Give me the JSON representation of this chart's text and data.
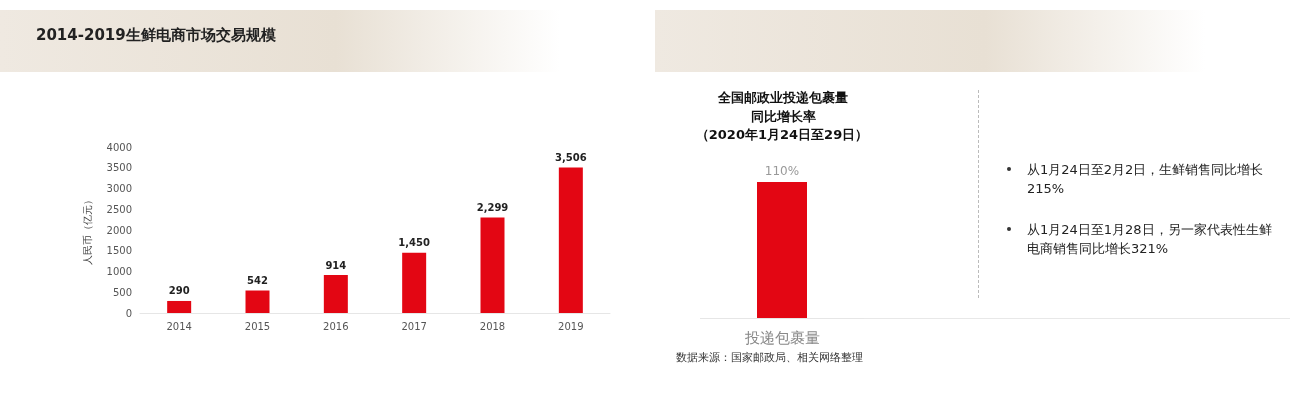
{
  "chart_data": [
    {
      "type": "bar",
      "title": "2014-2019生鲜电商市场交易规模",
      "ylabel": "人民币（亿元）",
      "categories": [
        "2014",
        "2015",
        "2016",
        "2017",
        "2018",
        "2019"
      ],
      "values": [
        290,
        542,
        914,
        1450,
        2299,
        3506
      ],
      "value_labels": [
        "290",
        "542",
        "914",
        "1,450",
        "2,299",
        "3,506"
      ],
      "color": "#e30613",
      "ylim": [
        0,
        4000
      ],
      "yticks": [
        0,
        500,
        1000,
        1500,
        2000,
        2500,
        3000,
        3500,
        4000
      ]
    },
    {
      "type": "bar",
      "title": "全国邮政业投递包裹量同比增长率",
      "subtitle": "（2020年1月24日至29日）",
      "categories": [
        "投递包裹量"
      ],
      "values": [
        110
      ],
      "value_labels": [
        "110%"
      ],
      "color": "#e30613",
      "annotations": [
        "数据来源：国家邮政局、相关网络整理"
      ]
    },
    {
      "type": "other",
      "annotations": [
        "从1月24日至2月2日，生鲜销售同比增长215%",
        "从1月24日至1月28日，另一家代表性生鲜电商销售同比增长321%"
      ]
    }
  ]
}
